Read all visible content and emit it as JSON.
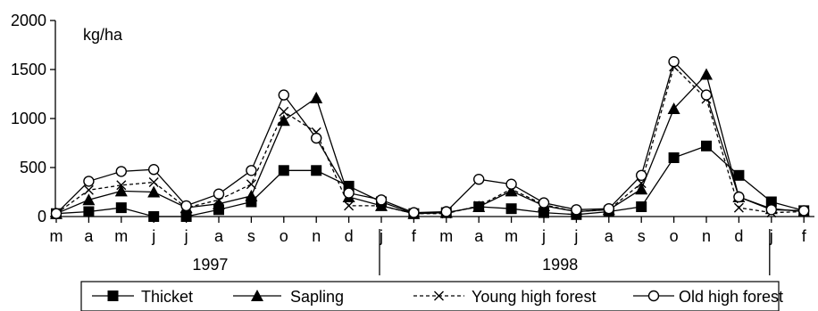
{
  "chart_data": {
    "type": "line",
    "unit_label": "kg/ha",
    "ylim": [
      0,
      2000
    ],
    "yticks": [
      0,
      500,
      1000,
      1500,
      2000
    ],
    "grid": false,
    "legend_position": "bottom",
    "x": [
      "m",
      "a",
      "m",
      "j",
      "j",
      "a",
      "s",
      "o",
      "n",
      "d",
      "j",
      "f",
      "m",
      "a",
      "m",
      "j",
      "j",
      "a",
      "s",
      "o",
      "n",
      "d",
      "j",
      "f"
    ],
    "years": [
      {
        "label": "1997",
        "first_index": 0,
        "last_index": 9
      },
      {
        "label": "1998",
        "first_index": 10,
        "last_index": 21
      }
    ],
    "series": [
      {
        "name": "Thicket",
        "marker": "square-filled",
        "dash": "solid",
        "values": [
          30,
          50,
          90,
          0,
          0,
          70,
          150,
          470,
          470,
          310,
          150,
          30,
          40,
          100,
          80,
          40,
          20,
          50,
          100,
          600,
          720,
          420,
          150,
          60
        ]
      },
      {
        "name": "Sapling",
        "marker": "triangle-filled",
        "dash": "solid",
        "values": [
          30,
          170,
          260,
          250,
          90,
          130,
          210,
          980,
          1210,
          200,
          110,
          30,
          40,
          100,
          260,
          110,
          50,
          70,
          280,
          1100,
          1450,
          200,
          80,
          50
        ]
      },
      {
        "name": "Young high forest",
        "marker": "x",
        "dash": "dashed",
        "values": [
          30,
          270,
          320,
          350,
          90,
          170,
          330,
          1070,
          860,
          110,
          110,
          30,
          30,
          110,
          280,
          120,
          50,
          70,
          340,
          1530,
          1200,
          90,
          40,
          50
        ]
      },
      {
        "name": "Old high forest",
        "marker": "circle-open",
        "dash": "solid",
        "values": [
          30,
          360,
          460,
          480,
          110,
          230,
          470,
          1240,
          800,
          240,
          170,
          40,
          50,
          380,
          330,
          140,
          70,
          80,
          420,
          1580,
          1240,
          200,
          70,
          60
        ]
      }
    ]
  }
}
